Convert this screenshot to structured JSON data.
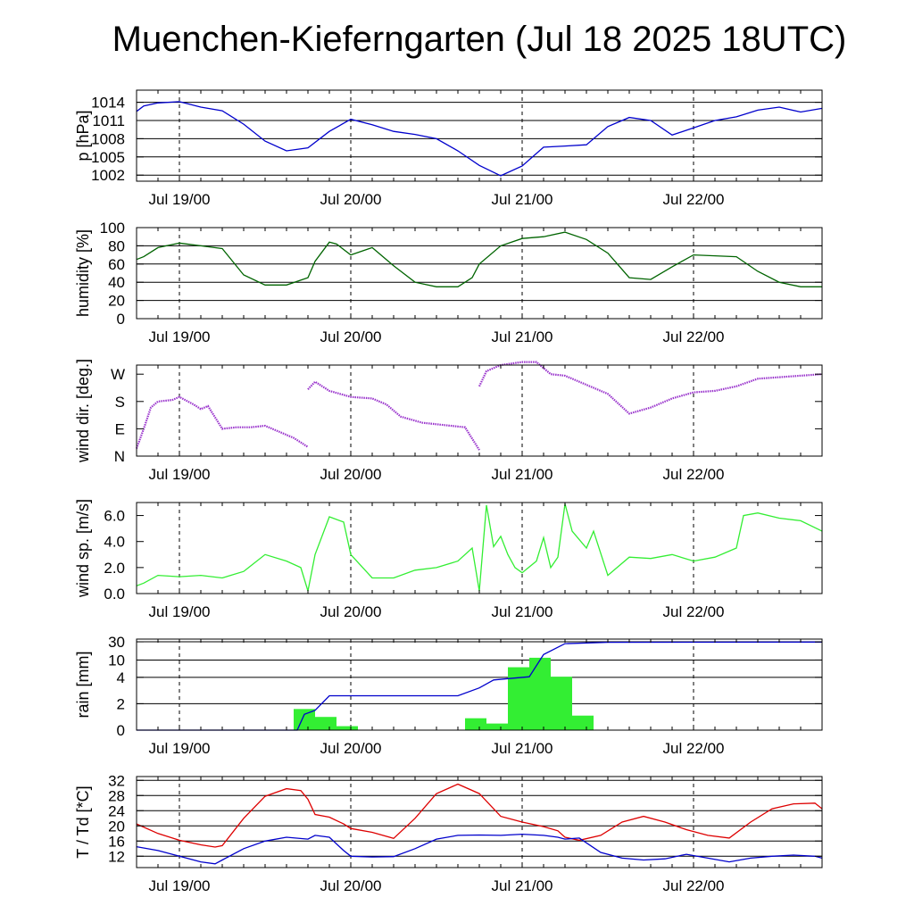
{
  "title": "Muenchen-Kieferngarten (Jul 18 2025 18UTC)",
  "chart_data": [
    {
      "type": "line",
      "ylabel": "p [hPa]",
      "ylim": [
        1001,
        1016
      ],
      "yticks": [
        "1014",
        "1011",
        "1008",
        "1005",
        "1002"
      ],
      "ytick_values": [
        1014,
        1011,
        1008,
        1005,
        1002
      ],
      "grid": true,
      "x_unit": "hours since Jul 18 18UTC",
      "xticks": [
        "Jul 19/00",
        "Jul 20/00",
        "Jul 21/00",
        "Jul 22/00"
      ],
      "series": [
        {
          "color": "#0000cc",
          "x": [
            0,
            1,
            3,
            6,
            9,
            12,
            15,
            18,
            21,
            24,
            27,
            30,
            33,
            36,
            39,
            42,
            45,
            48,
            51,
            54,
            57,
            60,
            63,
            66,
            69,
            72,
            75,
            78,
            81,
            84,
            87,
            90,
            93,
            96
          ],
          "y": [
            1012.5,
            1013.4,
            1013.9,
            1014.1,
            1013.2,
            1012.6,
            1010.4,
            1007.6,
            1006.0,
            1006.5,
            1009.2,
            1011.2,
            1010.3,
            1009.2,
            1008.7,
            1008.0,
            1006.0,
            1003.6,
            1001.9,
            1003.5,
            1006.6,
            1006.8,
            1007.0,
            1010.0,
            1011.5,
            1011.0,
            1008.6,
            1009.8,
            1011.0,
            1011.6,
            1012.7,
            1013.2,
            1012.4,
            1013.0
          ]
        }
      ]
    },
    {
      "type": "line",
      "ylabel": "humidity [%]",
      "ylim": [
        0,
        100
      ],
      "yticks": [
        "100",
        "80",
        "60",
        "40",
        "20",
        "0"
      ],
      "ytick_values": [
        100,
        80,
        60,
        40,
        20,
        0
      ],
      "grid": true,
      "xticks": [
        "Jul 19/00",
        "Jul 20/00",
        "Jul 21/00",
        "Jul 22/00"
      ],
      "series": [
        {
          "color": "#006400",
          "x": [
            0,
            1,
            3,
            6,
            9,
            12,
            15,
            18,
            21,
            24,
            25,
            27,
            28,
            30,
            33,
            36,
            39,
            42,
            45,
            47,
            48,
            51,
            54,
            57,
            60,
            63,
            66,
            69,
            72,
            75,
            78,
            81,
            84,
            87,
            90,
            93,
            96
          ],
          "y": [
            65,
            68,
            78,
            83,
            80,
            77,
            48,
            37,
            37,
            45,
            63,
            84,
            82,
            70,
            78,
            58,
            40,
            35,
            35,
            45,
            60,
            80,
            88,
            90,
            95,
            87,
            72,
            45,
            43,
            57,
            70,
            69,
            68,
            52,
            40,
            35,
            35
          ]
        }
      ]
    },
    {
      "type": "scatter",
      "ylabel": "wind dir. [deg.]",
      "ylim": [
        0,
        300
      ],
      "yticks": [
        "W",
        "S",
        "E",
        "N"
      ],
      "ytick_values": [
        270,
        180,
        90,
        0
      ],
      "grid": false,
      "xticks": [
        "Jul 19/00",
        "Jul 20/00",
        "Jul 21/00",
        "Jul 22/00"
      ],
      "series": [
        {
          "color": "#9933cc",
          "x": [
            0,
            1,
            2,
            3,
            5,
            6,
            8,
            9,
            10,
            12,
            14,
            16,
            18,
            20,
            22,
            23,
            24
          ],
          "y": [
            25,
            90,
            160,
            180,
            185,
            195,
            170,
            155,
            165,
            90,
            95,
            95,
            100,
            80,
            60,
            45,
            30
          ]
        },
        {
          "color": "#9933cc",
          "x": [
            24,
            25,
            27,
            30,
            33,
            35,
            37,
            40,
            42,
            44,
            46,
            48
          ],
          "y": [
            220,
            245,
            215,
            195,
            190,
            170,
            130,
            110,
            105,
            100,
            95,
            20
          ]
        },
        {
          "color": "#9933cc",
          "x": [
            48,
            49,
            51,
            54,
            56,
            58,
            60,
            63,
            66,
            69,
            72,
            75,
            78,
            81,
            84,
            87,
            90,
            93,
            96
          ],
          "y": [
            230,
            280,
            300,
            310,
            310,
            270,
            265,
            235,
            205,
            140,
            160,
            190,
            210,
            215,
            230,
            255,
            260,
            265,
            270
          ]
        }
      ]
    },
    {
      "type": "line",
      "ylabel": "wind sp. [m/s]",
      "ylim": [
        0,
        7
      ],
      "yticks": [
        "6.0",
        "4.0",
        "2.0",
        "0.0"
      ],
      "ytick_values": [
        6,
        4,
        2,
        0
      ],
      "grid": false,
      "xticks": [
        "Jul 19/00",
        "Jul 20/00",
        "Jul 21/00",
        "Jul 22/00"
      ],
      "series": [
        {
          "color": "#33ee33",
          "x": [
            0,
            1,
            3,
            6,
            9,
            12,
            15,
            18,
            21,
            23,
            24,
            25,
            27,
            29,
            30,
            33,
            36,
            39,
            42,
            45,
            47,
            48,
            49,
            50,
            51,
            52,
            53,
            54,
            56,
            57,
            58,
            59,
            60,
            61,
            63,
            64,
            66,
            69,
            72,
            75,
            78,
            81,
            84,
            85,
            87,
            90,
            93,
            96
          ],
          "y": [
            0.6,
            0.8,
            1.4,
            1.3,
            1.4,
            1.2,
            1.7,
            3.0,
            2.5,
            2.0,
            0.2,
            3.0,
            5.9,
            5.5,
            3.0,
            1.2,
            1.2,
            1.8,
            2.0,
            2.5,
            3.5,
            0.2,
            6.8,
            3.6,
            4.4,
            3.0,
            2.0,
            1.6,
            2.5,
            4.3,
            2.0,
            2.8,
            6.9,
            4.8,
            3.5,
            4.8,
            1.4,
            2.8,
            2.7,
            3.0,
            2.5,
            2.8,
            3.5,
            6.0,
            6.2,
            5.8,
            5.6,
            4.8
          ]
        }
      ]
    },
    {
      "type": "bar",
      "ylabel": "rain [mm]",
      "ylim": [
        0,
        33
      ],
      "yscale": "nonlinear",
      "yticks": [
        "30",
        "10",
        "4",
        "2",
        "0"
      ],
      "ytick_values": [
        30,
        10,
        4,
        2,
        0
      ],
      "grid": true,
      "xticks": [
        "Jul 19/00",
        "Jul 20/00",
        "Jul 21/00",
        "Jul 22/00"
      ],
      "bars": {
        "color": "#33ee33",
        "start": [
          22,
          25,
          28,
          46,
          49,
          52,
          55,
          58,
          61
        ],
        "end": [
          25,
          28,
          31,
          49,
          52,
          55,
          58,
          61,
          64
        ],
        "values": [
          1.6,
          1.0,
          0.3,
          0.9,
          0.5,
          7.5,
          12.5,
          4.2,
          1.1
        ]
      },
      "series": [
        {
          "color": "#0000cc",
          "x": [
            0,
            22.5,
            23.5,
            25,
            27,
            35,
            45,
            48,
            50,
            52,
            55,
            57,
            60,
            66,
            96
          ],
          "y": [
            0,
            0,
            1.2,
            1.5,
            2.6,
            2.6,
            2.6,
            3.2,
            3.8,
            3.9,
            4.2,
            16,
            28,
            29.5,
            29.8
          ]
        }
      ]
    },
    {
      "type": "line",
      "ylabel": "T / Td [*C]",
      "ylim": [
        9,
        33
      ],
      "yticks": [
        "32",
        "28",
        "24",
        "20",
        "16",
        "12"
      ],
      "ytick_values": [
        32,
        28,
        24,
        20,
        16,
        12
      ],
      "grid": true,
      "xticks": [
        "Jul 19/00",
        "Jul 20/00",
        "Jul 21/00",
        "Jul 22/00"
      ],
      "series": [
        {
          "color": "#dd0000",
          "x": [
            0,
            3,
            6,
            9,
            11,
            12,
            15,
            18,
            21,
            23,
            24,
            25,
            27,
            29,
            30,
            33,
            36,
            39,
            42,
            45,
            48,
            51,
            54,
            57,
            59,
            60,
            62,
            65,
            68,
            71,
            74,
            77,
            80,
            83,
            86,
            89,
            92,
            95,
            96
          ],
          "y": [
            20.5,
            18.0,
            16.2,
            15.0,
            14.4,
            14.8,
            22.0,
            27.8,
            29.8,
            29.3,
            27.0,
            23.0,
            22.3,
            20.5,
            19.3,
            18.3,
            16.7,
            22.0,
            28.5,
            31.0,
            28.5,
            22.5,
            21.0,
            19.8,
            18.7,
            17.0,
            16.2,
            17.5,
            21.0,
            22.5,
            21.0,
            19.0,
            17.5,
            16.8,
            21.0,
            24.5,
            25.8,
            26.0,
            24.5
          ]
        },
        {
          "color": "#0000cc",
          "x": [
            0,
            3,
            6,
            9,
            11,
            12,
            15,
            18,
            21,
            24,
            25,
            27,
            29,
            30,
            33,
            36,
            39,
            42,
            45,
            48,
            51,
            54,
            57,
            59,
            60,
            62,
            65,
            68,
            71,
            74,
            77,
            80,
            83,
            86,
            89,
            92,
            95,
            96
          ],
          "y": [
            14.5,
            13.5,
            12.0,
            10.5,
            10.0,
            11.0,
            14.0,
            16.0,
            17.0,
            16.5,
            17.5,
            17.0,
            13.5,
            12.0,
            11.8,
            11.9,
            14.0,
            16.5,
            17.5,
            17.6,
            17.5,
            17.8,
            17.5,
            17.0,
            16.5,
            16.8,
            13.0,
            11.5,
            11.0,
            11.3,
            12.5,
            11.5,
            10.5,
            11.5,
            12.0,
            12.3,
            12.0,
            11.5
          ]
        }
      ]
    }
  ]
}
